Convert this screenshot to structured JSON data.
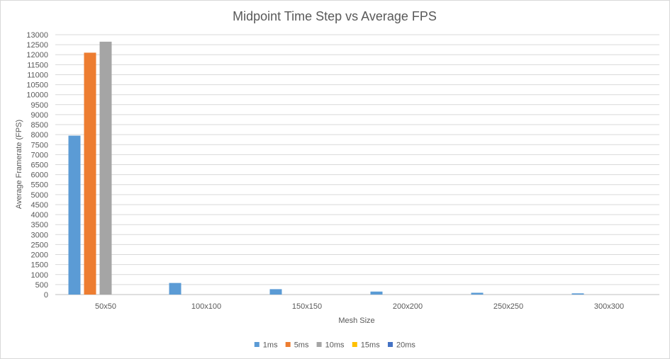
{
  "chart_data": {
    "type": "bar",
    "title": "Midpoint Time Step vs Average FPS",
    "xlabel": "Mesh Size",
    "ylabel": "Average Framerate  (FPS)",
    "categories": [
      "50x50",
      "100x100",
      "150x150",
      "200x200",
      "250x250",
      "300x300"
    ],
    "ylim": [
      0,
      13000
    ],
    "yticks": [
      0,
      500,
      1000,
      1500,
      2000,
      2500,
      3000,
      3500,
      4000,
      4500,
      5000,
      5500,
      6000,
      6500,
      7000,
      7500,
      8000,
      8500,
      9000,
      9500,
      10000,
      10500,
      11000,
      11500,
      12000,
      12500,
      13000
    ],
    "grid": true,
    "legend_position": "bottom",
    "series": [
      {
        "name": "1ms",
        "color": "#5b9bd5",
        "values": [
          7950,
          580,
          270,
          150,
          90,
          60
        ]
      },
      {
        "name": "5ms",
        "color": "#ed7d31",
        "values": [
          12100,
          0,
          0,
          0,
          0,
          0
        ]
      },
      {
        "name": "10ms",
        "color": "#a5a5a5",
        "values": [
          12650,
          0,
          0,
          0,
          0,
          0
        ]
      },
      {
        "name": "15ms",
        "color": "#ffc000",
        "values": [
          0,
          0,
          0,
          0,
          0,
          0
        ]
      },
      {
        "name": "20ms",
        "color": "#4472c4",
        "values": [
          0,
          0,
          0,
          0,
          0,
          0
        ]
      }
    ]
  }
}
